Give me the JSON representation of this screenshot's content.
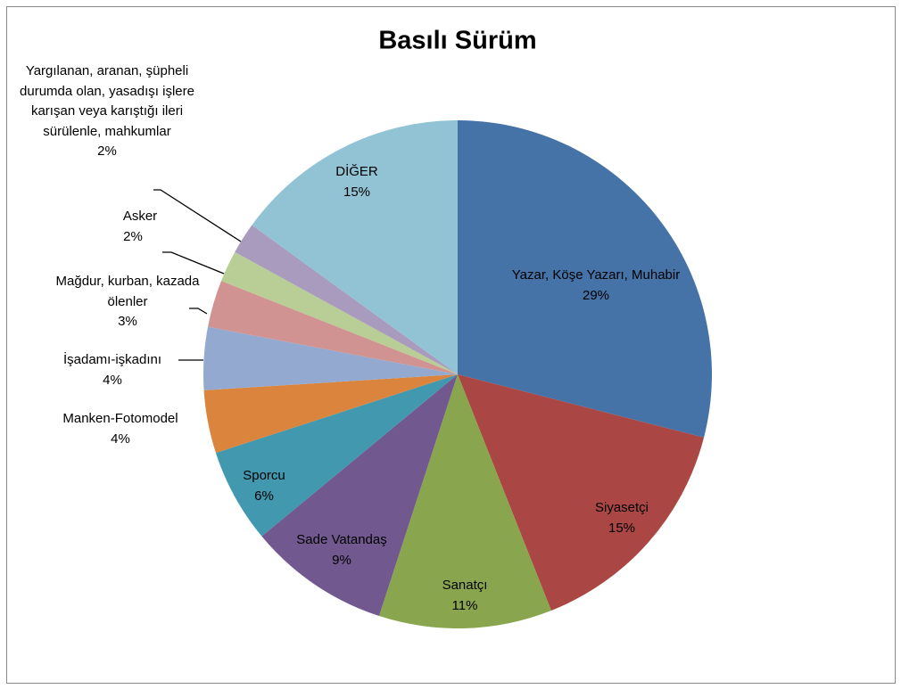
{
  "chart_data": {
    "type": "pie",
    "title": "Basılı Sürüm",
    "categories": [
      "Yazar, Köşe Yazarı, Muhabir",
      "Siyasetçi",
      "Sanatçı",
      "Sade Vatandaş",
      "Sporcu",
      "Manken-Fotomodel",
      "İşadamı-işkadını",
      "Mağdur, kurban, kazada ölenler",
      "Asker",
      "Yargılanan, aranan, şüpheli durumda olan, yasadışı işlere karışan veya karıştığı ileri sürülenle, mahkumlar",
      "DİĞER"
    ],
    "values": [
      29,
      15,
      11,
      9,
      6,
      4,
      4,
      3,
      2,
      2,
      15
    ],
    "value_labels": [
      "29%",
      "15%",
      "11%",
      "9%",
      "6%",
      "4%",
      "4%",
      "3%",
      "2%",
      "2%",
      "15%"
    ],
    "colors": [
      "#4572a7",
      "#aa4643",
      "#89a54e",
      "#71588f",
      "#4198af",
      "#db843d",
      "#93a9cf",
      "#d19392",
      "#b9cd96",
      "#a99bbd",
      "#92c3d4"
    ]
  }
}
